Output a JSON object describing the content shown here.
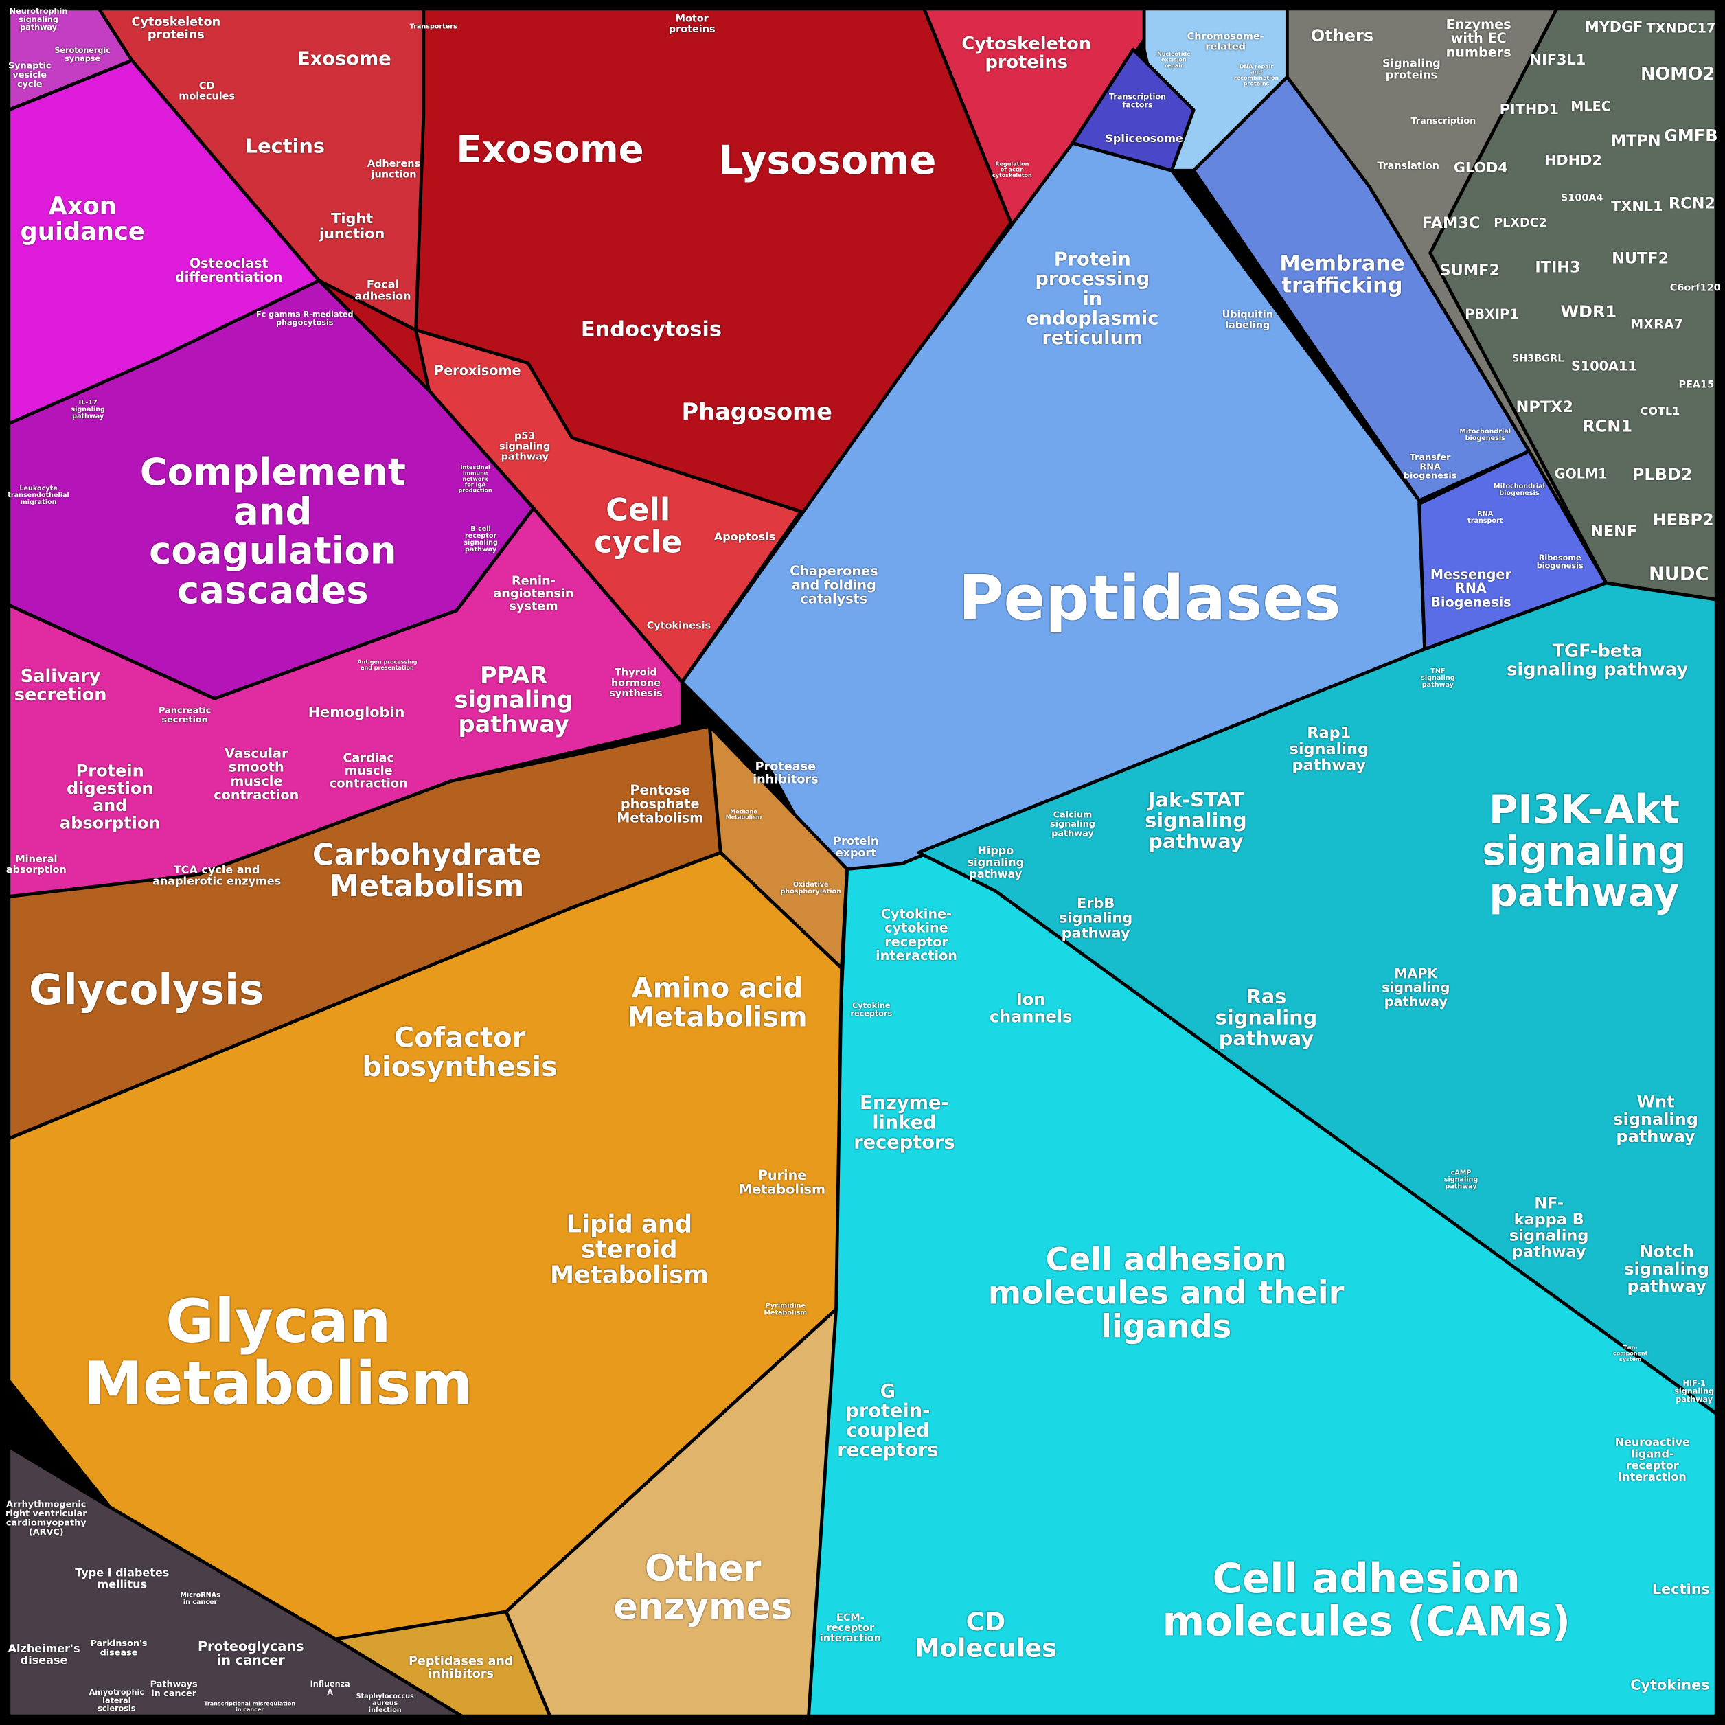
{
  "cells": [
    {
      "lines": [
        "Neurotrophin",
        "signaling",
        "pathway"
      ]
    },
    {
      "lines": [
        "Serotonergic",
        "synapse"
      ]
    },
    {
      "lines": [
        "Synaptic",
        "vesicle",
        "cycle"
      ]
    },
    {
      "lines": [
        "Axon",
        "guidance"
      ]
    },
    {
      "lines": [
        "Osteoclast",
        "differentiation"
      ]
    },
    {
      "lines": [
        "Fc gamma R-mediated",
        "phagocytosis"
      ]
    },
    {
      "lines": [
        "IL-17",
        "signaling",
        "pathway"
      ]
    },
    {
      "lines": [
        "Leukocyte",
        "transendothelial",
        "migration"
      ]
    },
    {
      "lines": [
        "Complement",
        "and",
        "coagulation",
        "cascades"
      ]
    },
    {
      "lines": [
        "Intestinal",
        "immune",
        "network",
        "for IgA",
        "production"
      ]
    },
    {
      "lines": [
        "B cell",
        "receptor",
        "signaling",
        "pathway"
      ]
    },
    {
      "lines": [
        "Antigen processing",
        "and presentation"
      ]
    },
    {
      "lines": [
        "Salivary",
        "secretion"
      ]
    },
    {
      "lines": [
        "Pancreatic",
        "secretion"
      ]
    },
    {
      "lines": [
        "Protein",
        "digestion",
        "and",
        "absorption"
      ]
    },
    {
      "lines": [
        "Mineral",
        "absorption"
      ]
    },
    {
      "lines": [
        "Vascular",
        "smooth",
        "muscle",
        "contraction"
      ]
    },
    {
      "lines": [
        "Hemoglobin"
      ]
    },
    {
      "lines": [
        "Cardiac",
        "muscle",
        "contraction"
      ]
    },
    {
      "lines": [
        "Renin-",
        "angiotensin",
        "system"
      ]
    },
    {
      "lines": [
        "PPAR",
        "signaling",
        "pathway"
      ]
    },
    {
      "lines": [
        "Thyroid",
        "hormone",
        "synthesis"
      ]
    },
    {
      "lines": [
        "Cytoskeleton",
        "proteins"
      ]
    },
    {
      "lines": [
        "CD",
        "molecules"
      ]
    },
    {
      "lines": [
        "Exosome"
      ]
    },
    {
      "lines": [
        "Transporters"
      ]
    },
    {
      "lines": [
        "Lectins"
      ]
    },
    {
      "lines": [
        "Adherens",
        "junction"
      ]
    },
    {
      "lines": [
        "Tight",
        "junction"
      ]
    },
    {
      "lines": [
        "Focal",
        "adhesion"
      ]
    },
    {
      "lines": [
        "Motor",
        "proteins"
      ]
    },
    {
      "lines": [
        "Exosome"
      ]
    },
    {
      "lines": [
        "Lysosome"
      ]
    },
    {
      "lines": [
        "Endocytosis"
      ]
    },
    {
      "lines": [
        "Peroxisome"
      ]
    },
    {
      "lines": [
        "Phagosome"
      ]
    },
    {
      "lines": [
        "p53",
        "signaling",
        "pathway"
      ]
    },
    {
      "lines": [
        "Cell",
        "cycle"
      ]
    },
    {
      "lines": [
        "Apoptosis"
      ]
    },
    {
      "lines": [
        "Cytokinesis"
      ]
    },
    {
      "lines": [
        "Cytoskeleton",
        "proteins"
      ]
    },
    {
      "lines": [
        "Regulation",
        "of actin",
        "cytoskeleton"
      ]
    },
    {
      "lines": [
        "Nucleotide",
        "excision",
        "repair"
      ]
    },
    {
      "lines": [
        "Chromosome-",
        "related"
      ]
    },
    {
      "lines": [
        "DNA repair",
        "and",
        "recombination",
        "proteins"
      ]
    },
    {
      "lines": [
        "Transcription",
        "factors"
      ]
    },
    {
      "lines": [
        "Spliceosome"
      ]
    },
    {
      "lines": [
        "Protein",
        "processing",
        "in",
        "endoplasmic",
        "reticulum"
      ]
    },
    {
      "lines": [
        "Ubiquitin",
        "labeling"
      ]
    },
    {
      "lines": [
        "Membrane",
        "trafficking"
      ]
    },
    {
      "lines": [
        "Chaperones",
        "and folding",
        "catalysts"
      ]
    },
    {
      "lines": [
        "Peptidases"
      ]
    },
    {
      "lines": [
        "Protease",
        "inhibitors"
      ]
    },
    {
      "lines": [
        "Protein",
        "export"
      ]
    },
    {
      "lines": [
        "Mitochondrial",
        "biogenesis"
      ]
    },
    {
      "lines": [
        "Transfer",
        "RNA",
        "biogenesis"
      ]
    },
    {
      "lines": [
        "Mitochondrial",
        "biogenesis"
      ]
    },
    {
      "lines": [
        "RNA",
        "transport"
      ]
    },
    {
      "lines": [
        "Messenger",
        "RNA",
        "Biogenesis"
      ]
    },
    {
      "lines": [
        "Ribosome",
        "biogenesis"
      ]
    },
    {
      "lines": [
        "Others"
      ]
    },
    {
      "lines": [
        "Signaling",
        "proteins"
      ]
    },
    {
      "lines": [
        "Enzymes",
        "with EC",
        "numbers"
      ]
    },
    {
      "lines": [
        "Transcription"
      ]
    },
    {
      "lines": [
        "Translation"
      ]
    },
    {
      "lines": [
        "MYDGF"
      ]
    },
    {
      "lines": [
        "TXNDC17"
      ]
    },
    {
      "lines": [
        "NIF3L1"
      ]
    },
    {
      "lines": [
        "NOMO2"
      ]
    },
    {
      "lines": [
        "PITHD1"
      ]
    },
    {
      "lines": [
        "MLEC"
      ]
    },
    {
      "lines": [
        "MTPN"
      ]
    },
    {
      "lines": [
        "GMFB"
      ]
    },
    {
      "lines": [
        "HDHD2"
      ]
    },
    {
      "lines": [
        "GLOD4"
      ]
    },
    {
      "lines": [
        "S100A4"
      ]
    },
    {
      "lines": [
        "TXNL1"
      ]
    },
    {
      "lines": [
        "RCN2"
      ]
    },
    {
      "lines": [
        "FAM3C"
      ]
    },
    {
      "lines": [
        "PLXDC2"
      ]
    },
    {
      "lines": [
        "ITIH3"
      ]
    },
    {
      "lines": [
        "NUTF2"
      ]
    },
    {
      "lines": [
        "C6orf120"
      ]
    },
    {
      "lines": [
        "SUMF2"
      ]
    },
    {
      "lines": [
        "WDR1"
      ]
    },
    {
      "lines": [
        "MXRA7"
      ]
    },
    {
      "lines": [
        "PBXIP1"
      ]
    },
    {
      "lines": [
        "SH3BGRL"
      ]
    },
    {
      "lines": [
        "S100A11"
      ]
    },
    {
      "lines": [
        "PEA15"
      ]
    },
    {
      "lines": [
        "NPTX2"
      ]
    },
    {
      "lines": [
        "RCN1"
      ]
    },
    {
      "lines": [
        "COTL1"
      ]
    },
    {
      "lines": [
        "GOLM1"
      ]
    },
    {
      "lines": [
        "PLBD2"
      ]
    },
    {
      "lines": [
        "NENF"
      ]
    },
    {
      "lines": [
        "HEBP2"
      ]
    },
    {
      "lines": [
        "NUDC"
      ]
    },
    {
      "lines": [
        "TGF-beta",
        "signaling pathway"
      ]
    },
    {
      "lines": [
        "TNF",
        "signaling",
        "pathway"
      ]
    },
    {
      "lines": [
        "Rap1",
        "signaling",
        "pathway"
      ]
    },
    {
      "lines": [
        "PI3K-Akt",
        "signaling",
        "pathway"
      ]
    },
    {
      "lines": [
        "Hippo",
        "signaling",
        "pathway"
      ]
    },
    {
      "lines": [
        "Calcium",
        "signaling",
        "pathway"
      ]
    },
    {
      "lines": [
        "Jak-STAT",
        "signaling",
        "pathway"
      ]
    },
    {
      "lines": [
        "ErbB",
        "signaling",
        "pathway"
      ]
    },
    {
      "lines": [
        "Cytokine-",
        "cytokine",
        "receptor",
        "interaction"
      ]
    },
    {
      "lines": [
        "MAPK",
        "signaling",
        "pathway"
      ]
    },
    {
      "lines": [
        "Cytokine",
        "receptors"
      ]
    },
    {
      "lines": [
        "Ion",
        "channels"
      ]
    },
    {
      "lines": [
        "Ras",
        "signaling",
        "pathway"
      ]
    },
    {
      "lines": [
        "Wnt",
        "signaling",
        "pathway"
      ]
    },
    {
      "lines": [
        "Enzyme-",
        "linked",
        "receptors"
      ]
    },
    {
      "lines": [
        "cAMP",
        "signaling",
        "pathway"
      ]
    },
    {
      "lines": [
        "NF-",
        "kappa B",
        "signaling",
        "pathway"
      ]
    },
    {
      "lines": [
        "Notch",
        "signaling",
        "pathway"
      ]
    },
    {
      "lines": [
        "Cell adhesion",
        "molecules and their",
        "ligands"
      ]
    },
    {
      "lines": [
        "Two-",
        "component",
        "system"
      ]
    },
    {
      "lines": [
        "HIF-1",
        "signaling",
        "pathway"
      ]
    },
    {
      "lines": [
        "G",
        "protein-",
        "coupled",
        "receptors"
      ]
    },
    {
      "lines": [
        "Neuroactive",
        "ligand-",
        "receptor",
        "interaction"
      ]
    },
    {
      "lines": [
        "ECM-",
        "receptor",
        "interaction"
      ]
    },
    {
      "lines": [
        "CD",
        "Molecules"
      ]
    },
    {
      "lines": [
        "Cell adhesion",
        "molecules (CAMs)"
      ]
    },
    {
      "lines": [
        "Lectins"
      ]
    },
    {
      "lines": [
        "Cytokines"
      ]
    },
    {
      "lines": [
        "Methane",
        "Metabolism"
      ]
    },
    {
      "lines": [
        "Pentose",
        "phosphate",
        "Metabolism"
      ]
    },
    {
      "lines": [
        "Oxidative",
        "phosphorylation"
      ]
    },
    {
      "lines": [
        "TCA cycle and",
        "anaplerotic enzymes"
      ]
    },
    {
      "lines": [
        "Carbohydrate",
        "Metabolism"
      ]
    },
    {
      "lines": [
        "Glycolysis"
      ]
    },
    {
      "lines": [
        "Amino acid",
        "Metabolism"
      ]
    },
    {
      "lines": [
        "Cofactor",
        "biosynthesis"
      ]
    },
    {
      "lines": [
        "Purine",
        "Metabolism"
      ]
    },
    {
      "lines": [
        "Lipid and",
        "steroid",
        "Metabolism"
      ]
    },
    {
      "lines": [
        "Pyrimidine",
        "Metabolism"
      ]
    },
    {
      "lines": [
        "Glycan",
        "Metabolism"
      ]
    },
    {
      "lines": [
        "Other",
        "enzymes"
      ]
    },
    {
      "lines": [
        "Peptidases and",
        "inhibitors"
      ]
    },
    {
      "lines": [
        "Arrhythmogenic",
        "right ventricular",
        "cardiomyopathy",
        "(ARVC)"
      ]
    },
    {
      "lines": [
        "Type I diabetes",
        "mellitus"
      ]
    },
    {
      "lines": [
        "MicroRNAs",
        "in cancer"
      ]
    },
    {
      "lines": [
        "Alzheimer's",
        "disease"
      ]
    },
    {
      "lines": [
        "Parkinson's",
        "disease"
      ]
    },
    {
      "lines": [
        "Proteoglycans",
        "in cancer"
      ]
    },
    {
      "lines": [
        "Amyotrophic",
        "lateral",
        "sclerosis"
      ]
    },
    {
      "lines": [
        "Pathways",
        "in cancer"
      ]
    },
    {
      "lines": [
        "Transcriptional misregulation",
        "in cancer"
      ]
    },
    {
      "lines": [
        "Influenza",
        "A"
      ]
    },
    {
      "lines": [
        "Staphylococcus",
        "aureus",
        "infection"
      ]
    }
  ]
}
